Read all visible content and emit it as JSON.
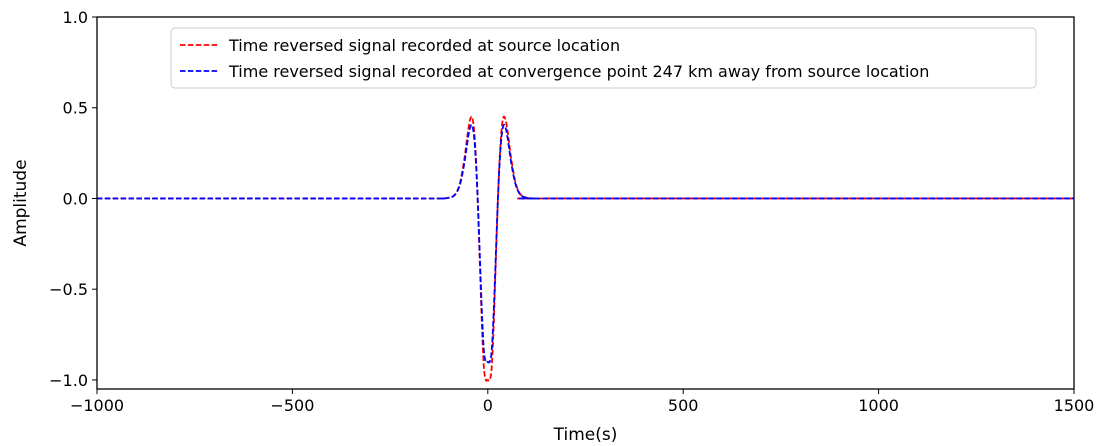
{
  "chart_data": {
    "type": "line",
    "title": "",
    "xlabel": "Time(s)",
    "ylabel": "Amplitude",
    "xlim": [
      -1000,
      1500
    ],
    "ylim": [
      -1.05,
      1.0
    ],
    "xticks": [
      -1000,
      -500,
      0,
      500,
      1000,
      1500
    ],
    "xtick_labels": [
      "−1000",
      "−500",
      "0",
      "500",
      "1000",
      "1500"
    ],
    "yticks": [
      -1.0,
      -0.5,
      0.0,
      0.5,
      1.0
    ],
    "ytick_labels": [
      "−1.0",
      "−0.5",
      "0.0",
      "0.5",
      "1.0"
    ],
    "grid": false,
    "legend_placement": "top-center",
    "series": [
      {
        "name": "Time reversed signal recorded at source location",
        "color": "#ff0000",
        "style": "dashed",
        "x": [
          -1000,
          -200,
          -120,
          -100,
          -90,
          -80,
          -70,
          -60,
          -55,
          -50,
          -45,
          -40,
          -35,
          -30,
          -25,
          -20,
          -15,
          -10,
          -5,
          0,
          5,
          10,
          15,
          20,
          25,
          30,
          35,
          40,
          45,
          50,
          55,
          60,
          70,
          80,
          90,
          100,
          120,
          200,
          1500
        ],
        "y": [
          0,
          0,
          0,
          0.004,
          0.011,
          0.034,
          0.096,
          0.217,
          0.299,
          0.38,
          0.437,
          0.447,
          0.375,
          0.206,
          -0.057,
          -0.38,
          -0.7,
          -0.931,
          -1.0,
          -1.0,
          -1.0,
          -0.931,
          -0.7,
          -0.38,
          -0.057,
          0.206,
          0.375,
          0.447,
          0.437,
          0.38,
          0.299,
          0.217,
          0.096,
          0.034,
          0.011,
          0.004,
          0,
          0,
          0
        ]
      },
      {
        "name": "Time reversed signal recorded at convergence point 247 km away from source location",
        "color": "#0000ff",
        "style": "dashed",
        "x": [
          -1000,
          -200,
          -120,
          -100,
          -90,
          -80,
          -70,
          -60,
          -55,
          -50,
          -45,
          -40,
          -35,
          -30,
          -25,
          -20,
          -15,
          -10,
          -5,
          0,
          5,
          10,
          15,
          20,
          25,
          30,
          35,
          40,
          45,
          50,
          55,
          60,
          70,
          80,
          90,
          100,
          120,
          200,
          1500
        ],
        "y": [
          0,
          0,
          0,
          0.004,
          0.01,
          0.031,
          0.086,
          0.195,
          0.269,
          0.342,
          0.393,
          0.402,
          0.338,
          0.185,
          -0.051,
          -0.342,
          -0.63,
          -0.838,
          -0.9,
          -0.9,
          -0.9,
          -0.838,
          -0.63,
          -0.342,
          -0.051,
          0.185,
          0.338,
          0.402,
          0.393,
          0.342,
          0.269,
          0.195,
          0.086,
          0.031,
          0.01,
          0.004,
          0,
          0,
          0
        ]
      }
    ]
  }
}
